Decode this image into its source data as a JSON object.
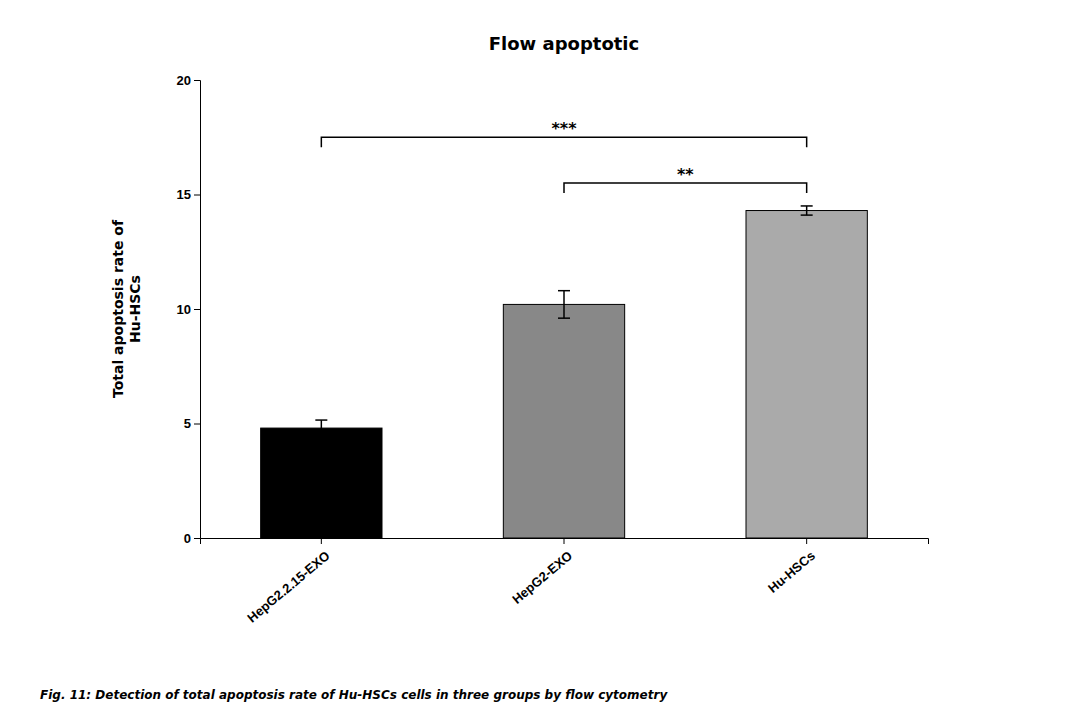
{
  "chart_data": {
    "type": "bar",
    "title": "Flow apoptotic",
    "y_label": "Total apoptosis rate of\nHu-HSCs",
    "categories": [
      "HepG2.2.15-EXO",
      "HepG2-EXO",
      "Hu-HSCs"
    ],
    "values": [
      4.8,
      10.2,
      14.3
    ],
    "errors": [
      0.35,
      0.6,
      0.2
    ],
    "colors": [
      "#000000",
      "#888888",
      "#aaaaaa"
    ],
    "ylim": [
      0,
      20
    ],
    "yticks": [
      0,
      5,
      10,
      15,
      20
    ],
    "grid": false,
    "annotations": [
      {
        "text": "***",
        "from": "HepG2.2.15-EXO",
        "to": "Hu-HSCs",
        "y": 17.5
      },
      {
        "text": "**",
        "from": "HepG2-EXO",
        "to": "Hu-HSCs",
        "y": 15.5
      }
    ],
    "caption": "Fig. 11: Detection of total apoptosis rate of Hu-HSCs cells in three groups by flow cytometry"
  }
}
